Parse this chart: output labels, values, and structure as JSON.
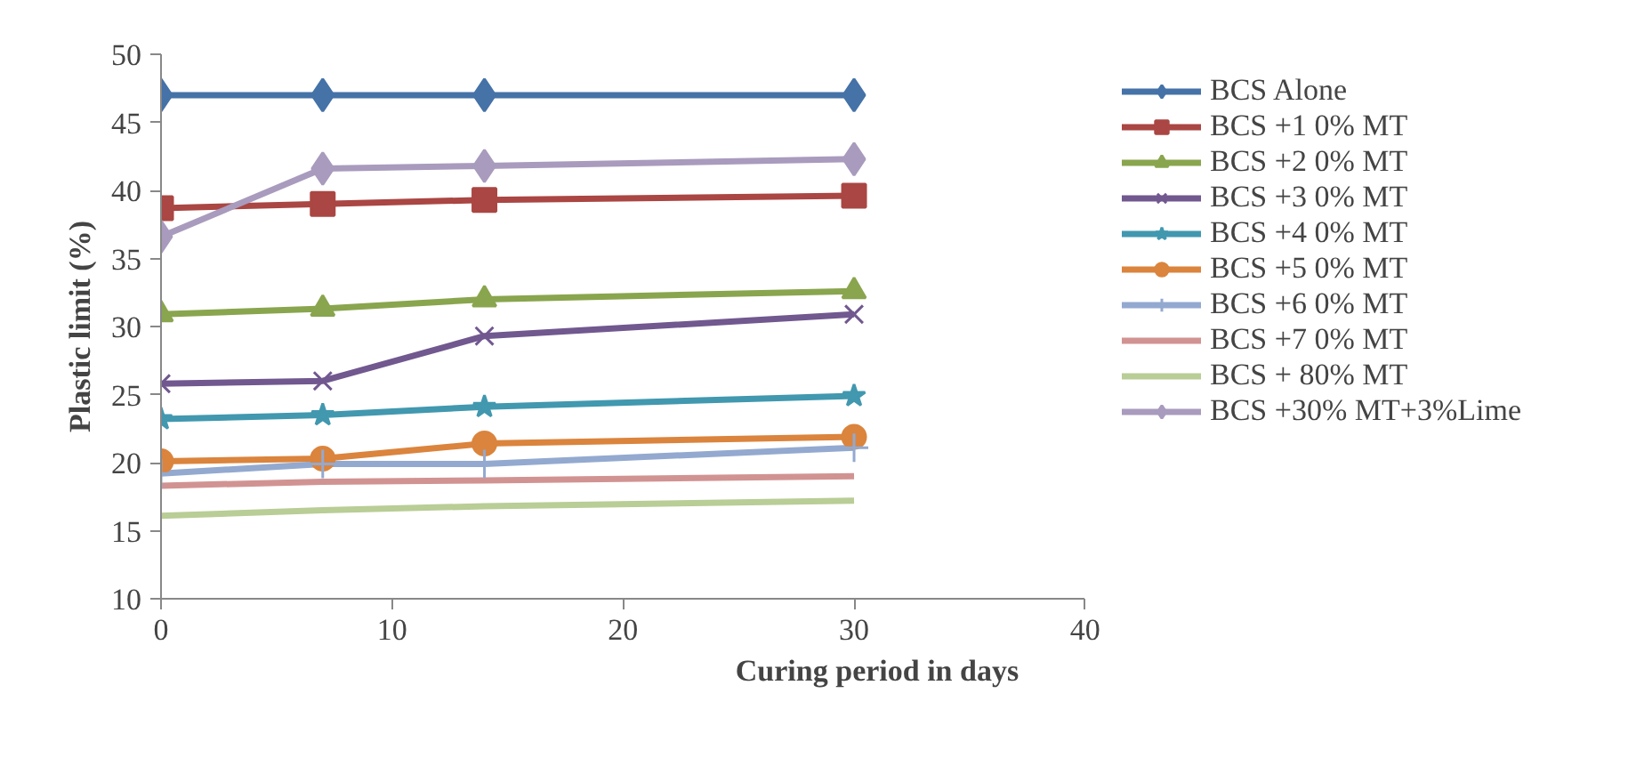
{
  "chart_data": {
    "type": "line",
    "xlabel": "Curing period in days",
    "ylabel": "Plastic limit (%)",
    "x": [
      0,
      7,
      14,
      30
    ],
    "xlim": [
      0,
      40
    ],
    "xticks": [
      0,
      10,
      20,
      30,
      40
    ],
    "ylim": [
      10,
      50
    ],
    "yticks": [
      10,
      15,
      20,
      25,
      30,
      35,
      40,
      45,
      50
    ],
    "grid": false,
    "legend": "right",
    "line_style": "solid",
    "series": [
      {
        "name": "BCS Alone",
        "color": "#4572a7",
        "marker": "diamond",
        "values": [
          47.0,
          47.0,
          47.0,
          47.0
        ]
      },
      {
        "name": "BCS +1 0% MT",
        "color": "#aa4643",
        "marker": "square",
        "values": [
          38.7,
          39.0,
          39.3,
          39.6
        ]
      },
      {
        "name": "BCS +2 0% MT",
        "color": "#89a54e",
        "marker": "triangle",
        "values": [
          30.9,
          31.3,
          32.0,
          32.6
        ]
      },
      {
        "name": "BCS +3 0% MT",
        "color": "#71588f",
        "marker": "x",
        "values": [
          25.8,
          26.0,
          29.3,
          30.9
        ]
      },
      {
        "name": "BCS +4 0% MT",
        "color": "#4198af",
        "marker": "star",
        "values": [
          23.2,
          23.5,
          24.1,
          24.9
        ]
      },
      {
        "name": "BCS +5 0% MT",
        "color": "#db843d",
        "marker": "circle",
        "values": [
          20.1,
          20.3,
          21.4,
          21.9
        ]
      },
      {
        "name": "BCS +6 0% MT",
        "color": "#93a9cf",
        "marker": "cross",
        "values": [
          19.2,
          19.9,
          19.9,
          21.1
        ]
      },
      {
        "name": "BCS +7 0% MT",
        "color": "#d19392",
        "marker": "none",
        "values": [
          18.3,
          18.6,
          18.7,
          19.0
        ]
      },
      {
        "name": "BCS + 80% MT",
        "color": "#b9cd96",
        "marker": "none",
        "values": [
          16.1,
          16.5,
          16.8,
          17.2
        ]
      },
      {
        "name": "BCS +30% MT+3%Lime",
        "color": "#a99bbd",
        "marker": "diamond",
        "values": [
          36.6,
          41.6,
          41.8,
          42.3
        ]
      }
    ]
  }
}
